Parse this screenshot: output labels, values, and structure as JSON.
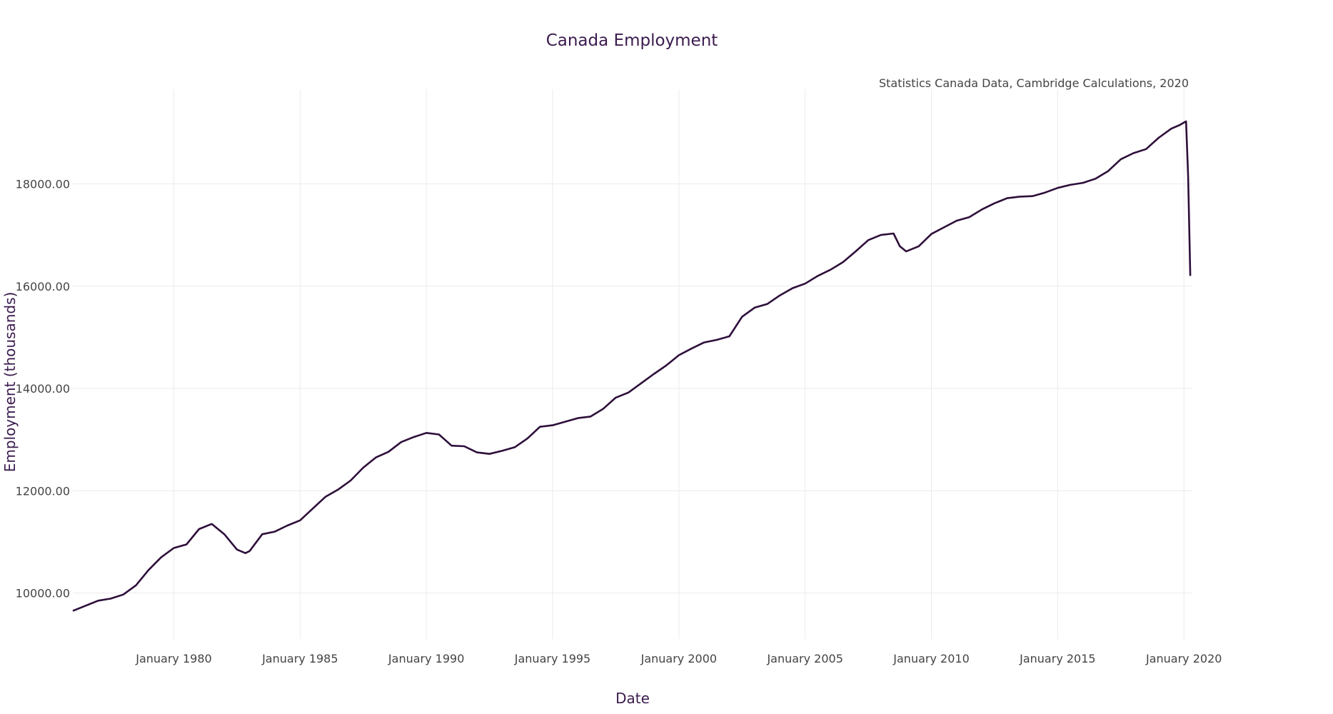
{
  "chart_data": {
    "type": "line",
    "title": "Canada Employment",
    "subtitle": "Statistics Canada Data, Cambridge Calculations, 2020",
    "xlabel": "Date",
    "ylabel": "Employment (thousands)",
    "x_ticks": [
      "January 1980",
      "January 1985",
      "January 1990",
      "January 1995",
      "January 2000",
      "January 2005",
      "January 2010",
      "January 2015",
      "January 2020"
    ],
    "y_ticks": [
      "10000.00",
      "12000.00",
      "14000.00",
      "16000.00",
      "18000.00"
    ],
    "xlim": [
      "1976-01",
      "2020-05"
    ],
    "ylim": [
      9100,
      19850
    ],
    "grid": true,
    "line_color": "#2e0f3a",
    "series": [
      {
        "x": [
          "1976-01",
          "1976-07",
          "1977-01",
          "1977-07",
          "1978-01",
          "1978-07",
          "1979-01",
          "1979-07",
          "1980-01",
          "1980-07",
          "1981-01",
          "1981-07",
          "1982-01",
          "1982-07",
          "1982-11",
          "1983-01",
          "1983-07",
          "1984-01",
          "1984-07",
          "1985-01",
          "1985-07",
          "1986-01",
          "1986-07",
          "1987-01",
          "1987-07",
          "1988-01",
          "1988-07",
          "1989-01",
          "1989-07",
          "1990-01",
          "1990-07",
          "1991-01",
          "1991-07",
          "1992-01",
          "1992-07",
          "1993-01",
          "1993-07",
          "1994-01",
          "1994-07",
          "1995-01",
          "1995-07",
          "1996-01",
          "1996-07",
          "1997-01",
          "1997-07",
          "1998-01",
          "1998-07",
          "1999-01",
          "1999-07",
          "2000-01",
          "2000-07",
          "2001-01",
          "2001-07",
          "2002-01",
          "2002-07",
          "2003-01",
          "2003-07",
          "2004-01",
          "2004-07",
          "2005-01",
          "2005-07",
          "2006-01",
          "2006-07",
          "2007-01",
          "2007-07",
          "2008-01",
          "2008-07",
          "2008-10",
          "2009-01",
          "2009-07",
          "2010-01",
          "2010-07",
          "2011-01",
          "2011-07",
          "2012-01",
          "2012-07",
          "2013-01",
          "2013-07",
          "2014-01",
          "2014-07",
          "2015-01",
          "2015-07",
          "2016-01",
          "2016-07",
          "2017-01",
          "2017-07",
          "2018-01",
          "2018-07",
          "2019-01",
          "2019-07",
          "2019-11",
          "2020-01",
          "2020-02",
          "2020-03",
          "2020-04"
        ],
        "values": [
          9650,
          9750,
          9850,
          9890,
          9970,
          10150,
          10450,
          10700,
          10880,
          10950,
          11250,
          11350,
          11150,
          10850,
          10780,
          10820,
          11150,
          11200,
          11320,
          11420,
          11650,
          11880,
          12020,
          12200,
          12450,
          12650,
          12760,
          12950,
          13050,
          13130,
          13100,
          12880,
          12870,
          12750,
          12720,
          12780,
          12850,
          13020,
          13250,
          13280,
          13350,
          13420,
          13450,
          13600,
          13820,
          13920,
          14100,
          14280,
          14450,
          14650,
          14780,
          14900,
          14950,
          15020,
          15400,
          15580,
          15650,
          15820,
          15960,
          16050,
          16200,
          16320,
          16470,
          16680,
          16900,
          17000,
          17030,
          16780,
          16680,
          16780,
          17020,
          17150,
          17280,
          17350,
          17500,
          17620,
          17720,
          17750,
          17760,
          17830,
          17920,
          17980,
          18020,
          18100,
          18250,
          18480,
          18600,
          18680,
          18900,
          19080,
          19150,
          19200,
          19220,
          18150,
          16200
        ]
      }
    ]
  }
}
